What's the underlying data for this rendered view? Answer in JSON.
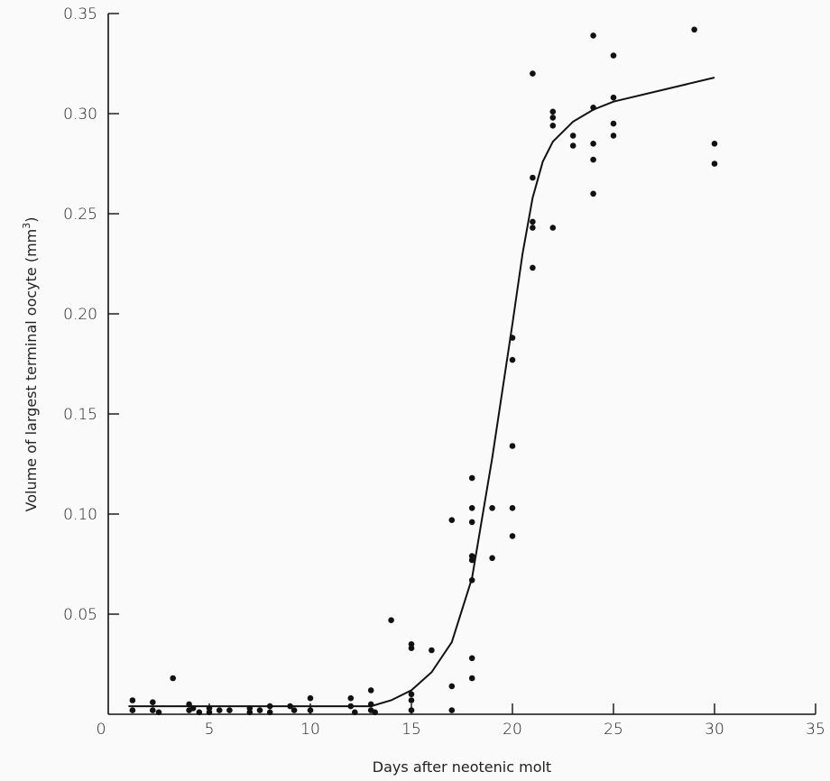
{
  "chart_data": {
    "type": "scatter",
    "title": "",
    "xlabel": "Days after neotenic molt",
    "ylabel": "Volume of largest terminal oocyte (mm",
    "ylabel_sup": "3",
    "ylabel_end": ")",
    "xlim": [
      0,
      35
    ],
    "ylim": [
      0,
      0.35
    ],
    "grid": false,
    "x_ticks": [
      0,
      5,
      10,
      15,
      20,
      25,
      30,
      35
    ],
    "x_tick_labels": [
      "0",
      "5",
      "10",
      "15",
      "20",
      "25",
      "30",
      "35"
    ],
    "y_ticks": [
      0.05,
      0.1,
      0.15,
      0.2,
      0.25,
      0.3,
      0.35
    ],
    "y_tick_labels": [
      "0.05",
      "0.10",
      "0.15",
      "0.20",
      "0.25",
      "0.30",
      "0.35"
    ],
    "points": [
      [
        1.2,
        0.007
      ],
      [
        1.2,
        0.002
      ],
      [
        2.2,
        0.006
      ],
      [
        2.2,
        0.002
      ],
      [
        2.5,
        0.001
      ],
      [
        3.2,
        0.018
      ],
      [
        4.0,
        0.005
      ],
      [
        4.0,
        0.002
      ],
      [
        4.2,
        0.003
      ],
      [
        4.5,
        0.001
      ],
      [
        5.0,
        0.003
      ],
      [
        5.0,
        0.001
      ],
      [
        5.5,
        0.002
      ],
      [
        6.0,
        0.002
      ],
      [
        7.0,
        0.003
      ],
      [
        7.0,
        0.001
      ],
      [
        7.5,
        0.002
      ],
      [
        8.0,
        0.004
      ],
      [
        8.0,
        0.001
      ],
      [
        9.0,
        0.004
      ],
      [
        9.2,
        0.002
      ],
      [
        10.0,
        0.008
      ],
      [
        10.0,
        0.002
      ],
      [
        12.0,
        0.008
      ],
      [
        12.0,
        0.004
      ],
      [
        12.2,
        0.001
      ],
      [
        13.0,
        0.012
      ],
      [
        13.0,
        0.005
      ],
      [
        13.0,
        0.002
      ],
      [
        13.2,
        0.001
      ],
      [
        14.0,
        0.047
      ],
      [
        15.0,
        0.035
      ],
      [
        15.0,
        0.033
      ],
      [
        15.0,
        0.01
      ],
      [
        15.0,
        0.007
      ],
      [
        15.0,
        0.002
      ],
      [
        16.0,
        0.032
      ],
      [
        17.0,
        0.097
      ],
      [
        17.0,
        0.014
      ],
      [
        17.0,
        0.002
      ],
      [
        18.0,
        0.118
      ],
      [
        18.0,
        0.103
      ],
      [
        18.0,
        0.096
      ],
      [
        18.0,
        0.079
      ],
      [
        18.0,
        0.077
      ],
      [
        18.0,
        0.067
      ],
      [
        18.0,
        0.028
      ],
      [
        18.0,
        0.018
      ],
      [
        19.0,
        0.103
      ],
      [
        19.0,
        0.078
      ],
      [
        20.0,
        0.188
      ],
      [
        20.0,
        0.177
      ],
      [
        20.0,
        0.134
      ],
      [
        20.0,
        0.103
      ],
      [
        20.0,
        0.089
      ],
      [
        21.0,
        0.32
      ],
      [
        21.0,
        0.268
      ],
      [
        21.0,
        0.246
      ],
      [
        21.0,
        0.243
      ],
      [
        21.0,
        0.223
      ],
      [
        22.0,
        0.301
      ],
      [
        22.0,
        0.298
      ],
      [
        22.0,
        0.294
      ],
      [
        22.0,
        0.243
      ],
      [
        23.0,
        0.289
      ],
      [
        23.0,
        0.284
      ],
      [
        24.0,
        0.339
      ],
      [
        24.0,
        0.303
      ],
      [
        24.0,
        0.285
      ],
      [
        24.0,
        0.277
      ],
      [
        24.0,
        0.26
      ],
      [
        25.0,
        0.329
      ],
      [
        25.0,
        0.308
      ],
      [
        25.0,
        0.295
      ],
      [
        25.0,
        0.289
      ],
      [
        29.0,
        0.342
      ],
      [
        30.0,
        0.285
      ],
      [
        30.0,
        0.275
      ]
    ],
    "fit_curve": [
      [
        1.0,
        0.004
      ],
      [
        13.0,
        0.004
      ],
      [
        14.0,
        0.007
      ],
      [
        15.0,
        0.012
      ],
      [
        16.0,
        0.021
      ],
      [
        17.0,
        0.036
      ],
      [
        18.0,
        0.068
      ],
      [
        19.0,
        0.128
      ],
      [
        20.0,
        0.195
      ],
      [
        20.5,
        0.23
      ],
      [
        21.0,
        0.258
      ],
      [
        21.5,
        0.276
      ],
      [
        22.0,
        0.286
      ],
      [
        23.0,
        0.296
      ],
      [
        24.0,
        0.302
      ],
      [
        25.0,
        0.306
      ],
      [
        30.0,
        0.318
      ]
    ]
  }
}
